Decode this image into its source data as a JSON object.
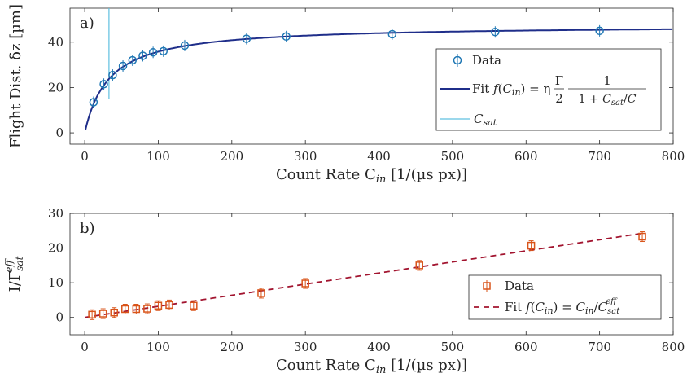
{
  "chart_data": [
    {
      "type": "scatter",
      "panel_label": "a)",
      "xlabel": "Count Rate C",
      "xlabel_sub": "in",
      "xlabel_unit": "[1/(µs px)]",
      "ylabel": "Flight Dist. δz [µm]",
      "xlim": [
        -20,
        800
      ],
      "ylim": [
        -5,
        55
      ],
      "xticks": [
        0,
        100,
        200,
        300,
        400,
        500,
        600,
        700,
        800
      ],
      "yticks": [
        0,
        20,
        40
      ],
      "grid": false,
      "legend_position": "right",
      "legend": [
        {
          "label": "Data"
        },
        {
          "label": "Fit",
          "formula": "f(Cin) = η Γ/2 · 1/(1 + Csat/C)"
        },
        {
          "label": "Csat"
        }
      ],
      "colors": {
        "data": "#1f77b4",
        "fit": "#1f2e8a",
        "csat": "#5fc0e0"
      },
      "series": [
        {
          "name": "Data",
          "x": [
            12,
            26,
            38,
            52,
            65,
            79,
            93,
            107,
            136,
            220,
            274,
            418,
            558,
            700
          ],
          "y": [
            13.5,
            21.5,
            25.5,
            29.5,
            32,
            34,
            35.5,
            36,
            38.5,
            41.5,
            42.5,
            43.5,
            44.5,
            45
          ]
        }
      ],
      "fit": {
        "amplitude": 47.6,
        "csat": 33
      },
      "csat_line": {
        "x": 33,
        "y_range": [
          15,
          55
        ]
      }
    },
    {
      "type": "scatter",
      "panel_label": "b)",
      "xlabel": "Count Rate C",
      "xlabel_sub": "in",
      "xlabel_unit": "[1/(µs px)]",
      "ylabel": "I/Γ",
      "ylabel_sub": "sat",
      "ylabel_sup": "eff",
      "xlim": [
        -20,
        800
      ],
      "ylim": [
        -5,
        30
      ],
      "xticks": [
        0,
        100,
        200,
        300,
        400,
        500,
        600,
        700,
        800
      ],
      "yticks": [
        0,
        10,
        20,
        30
      ],
      "grid": false,
      "legend_position": "bottom-right",
      "legend": [
        {
          "label": "Data"
        },
        {
          "label": "Fit",
          "formula": "f(Cin) = Cin/Csat^eff"
        }
      ],
      "colors": {
        "data": "#d9541a",
        "fit": "#a2142f"
      },
      "series": [
        {
          "name": "Data",
          "x": [
            10,
            25,
            40,
            55,
            70,
            85,
            100,
            115,
            148,
            240,
            300,
            455,
            607,
            758
          ],
          "y": [
            0.8,
            1.1,
            1.4,
            2.4,
            2.4,
            2.5,
            3.4,
            3.6,
            3.4,
            7.0,
            9.8,
            15.0,
            20.7,
            23.3
          ]
        }
      ],
      "fit": {
        "slope": 0.032
      }
    }
  ]
}
